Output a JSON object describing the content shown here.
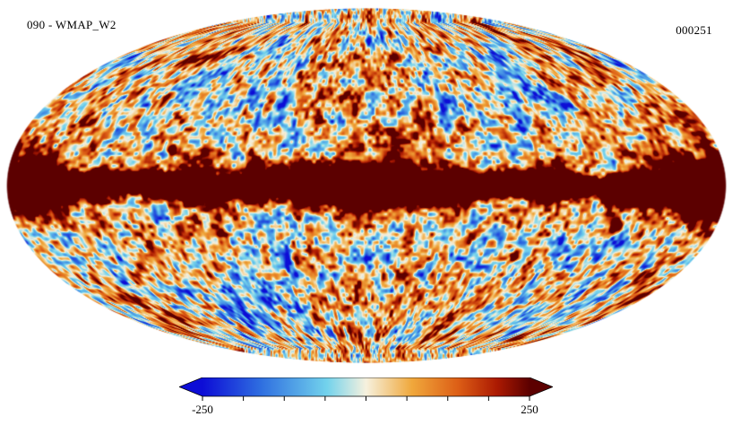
{
  "header": {
    "title": "090 - WMAP_W2",
    "frame_number": "000251"
  },
  "chart_data": {
    "type": "heatmap",
    "subtype": "all-sky-map",
    "projection": "mollweide",
    "title": "090 - WMAP_W2",
    "frame_number": "000251",
    "colorbar": {
      "min": -250,
      "max": 250,
      "tick_labels": [
        "-250",
        "250"
      ],
      "tick_count": 9,
      "arrow_ends": true
    },
    "colormap": {
      "name": "planck-cmb",
      "stops": [
        {
          "pos": 0.0,
          "color": "#0d0dd6"
        },
        {
          "pos": 0.18,
          "color": "#2f6fe0"
        },
        {
          "pos": 0.38,
          "color": "#72d2ec"
        },
        {
          "pos": 0.5,
          "color": "#f6f1de"
        },
        {
          "pos": 0.64,
          "color": "#f0a83c"
        },
        {
          "pos": 0.78,
          "color": "#dd5f16"
        },
        {
          "pos": 0.9,
          "color": "#ac1a02"
        },
        {
          "pos": 1.0,
          "color": "#5c0000"
        }
      ]
    },
    "features": {
      "background": "fine CMB-like speckle, cream/orange dominant with cyan-blue patches",
      "galactic_plane": "saturated dark-red band along the equator, widest at the central bulge and at the left/right map edges",
      "point_sources": [
        {
          "u": 0.71,
          "v": 0.23,
          "r": 5
        },
        {
          "u": -0.55,
          "v": -0.2,
          "r": 4
        },
        {
          "u": 0.45,
          "v": 0.4,
          "r": 4
        }
      ]
    }
  }
}
